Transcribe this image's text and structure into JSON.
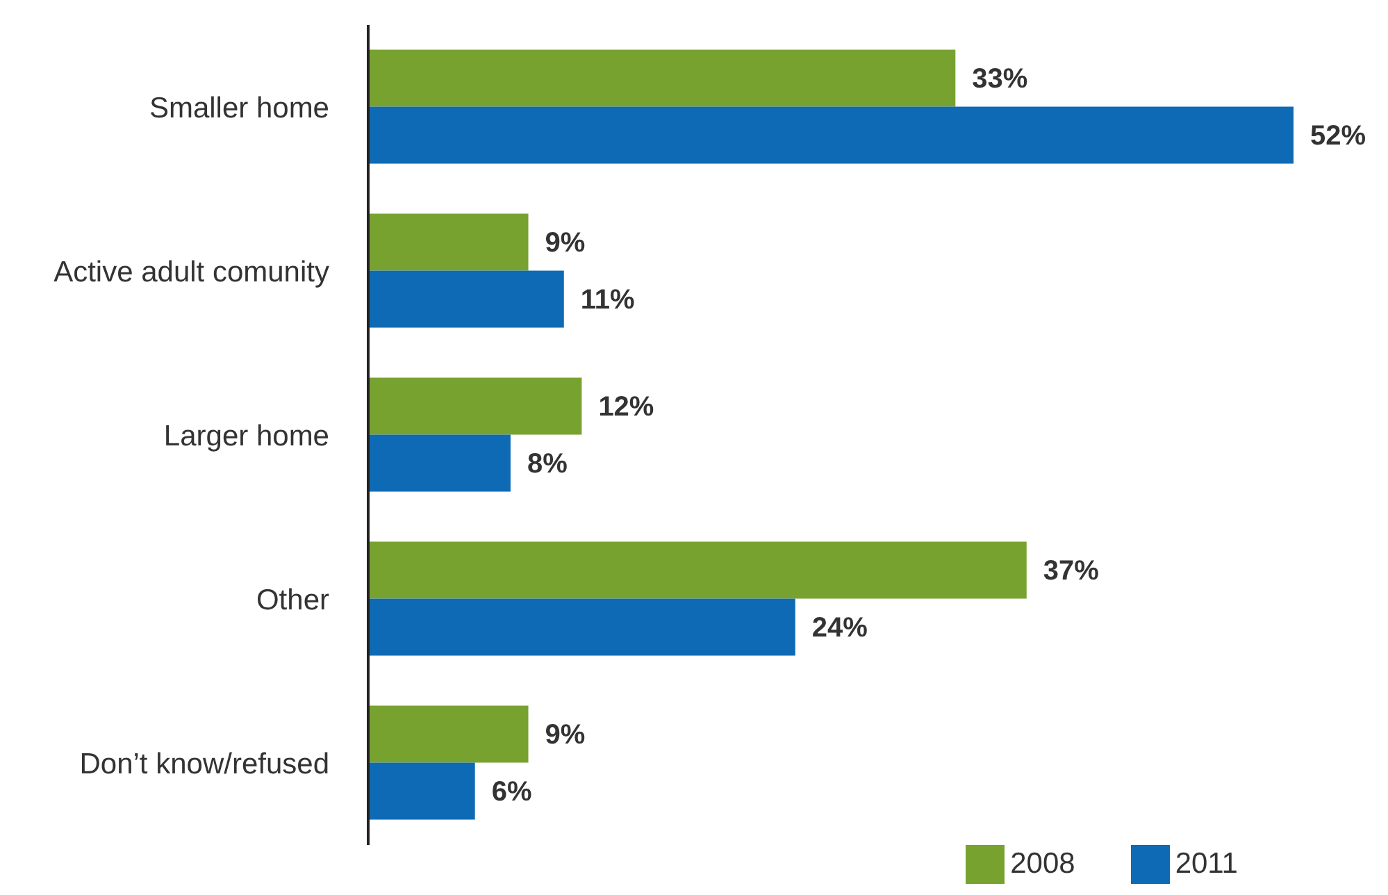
{
  "chart_data": {
    "type": "bar",
    "orientation": "horizontal",
    "categories": [
      "Smaller home",
      "Active adult comunity",
      "Larger home",
      "Other",
      "Don’t know/refused"
    ],
    "series": [
      {
        "name": "2008",
        "color": "#78a22f",
        "values": [
          33,
          9,
          12,
          37,
          9
        ],
        "value_labels": [
          "33%",
          "9%",
          "12%",
          "37%",
          "9%"
        ]
      },
      {
        "name": "2011",
        "color": "#0e6ab4",
        "values": [
          52,
          11,
          8,
          24,
          6
        ],
        "value_labels": [
          "52%",
          "11%",
          "8%",
          "24%",
          "6%"
        ]
      }
    ],
    "legend": "bottom right",
    "grid": false
  }
}
